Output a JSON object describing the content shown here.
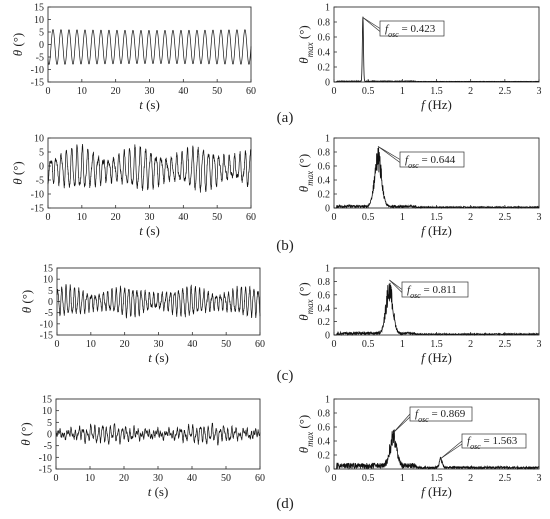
{
  "figure": {
    "panels": [
      {
        "label": "(a)",
        "fosc": [
          "0.423"
        ]
      },
      {
        "label": "(b)",
        "fosc": [
          "0.644"
        ]
      },
      {
        "label": "(c)",
        "fosc": [
          "0.811"
        ]
      },
      {
        "label": "(d)",
        "fosc": [
          "0.869",
          "1.563"
        ]
      }
    ]
  },
  "chart_data": [
    {
      "type": "line",
      "panel": "(a)",
      "role": "time-history",
      "xlabel": "t (s)",
      "ylabel": "θ (°)",
      "xlim": [
        0,
        60
      ],
      "ylim": [
        -15,
        15
      ],
      "xticks": [
        "0",
        "10",
        "20",
        "30",
        "40",
        "50",
        "60"
      ],
      "yticks": [
        "15",
        "10",
        "5",
        "0",
        "-5",
        "-10",
        "-15"
      ],
      "signal": {
        "dominant_frequency_hz": 0.423,
        "amplitude_deg": 7,
        "offset_deg": -1
      }
    },
    {
      "type": "line",
      "panel": "(a)",
      "role": "spectrum",
      "xlabel": "f (Hz)",
      "ylabel": "θmax (°)",
      "xlim": [
        0,
        3
      ],
      "ylim": [
        0,
        1
      ],
      "xticks": [
        "0",
        "0.5",
        "1",
        "1.5",
        "2",
        "2.5",
        "3"
      ],
      "yticks": [
        "1",
        "0.8",
        "0.6",
        "0.4",
        "0.2",
        "0"
      ],
      "peaks": [
        {
          "f": 0.423,
          "amp": 0.86,
          "label": "0.423"
        }
      ]
    },
    {
      "type": "line",
      "panel": "(b)",
      "role": "time-history",
      "xlabel": "t (s)",
      "ylabel": "θ (°)",
      "xlim": [
        0,
        60
      ],
      "ylim": [
        -15,
        10
      ],
      "xticks": [
        "0",
        "10",
        "20",
        "30",
        "40",
        "50",
        "60"
      ],
      "yticks": [
        "10",
        "5",
        "0",
        "-5",
        "-10",
        "-15"
      ],
      "signal": {
        "dominant_frequency_hz": 0.644,
        "amplitude_deg": 7,
        "offset_deg": -1
      }
    },
    {
      "type": "line",
      "panel": "(b)",
      "role": "spectrum",
      "xlabel": "f (Hz)",
      "ylabel": "θmax (°)",
      "xlim": [
        0,
        3
      ],
      "ylim": [
        0,
        1
      ],
      "xticks": [
        "0",
        "0.5",
        "1",
        "1.5",
        "2",
        "2.5",
        "3"
      ],
      "yticks": [
        "1",
        "0.8",
        "0.6",
        "0.4",
        "0.2",
        "0"
      ],
      "peaks": [
        {
          "f": 0.644,
          "amp": 0.88,
          "label": "0.644"
        }
      ]
    },
    {
      "type": "line",
      "panel": "(c)",
      "role": "time-history",
      "xlabel": "t (s)",
      "ylabel": "θ (°)",
      "xlim": [
        0,
        60
      ],
      "ylim": [
        -15,
        15
      ],
      "xticks": [
        "0",
        "10",
        "20",
        "30",
        "40",
        "50",
        "60"
      ],
      "yticks": [
        "15",
        "10",
        "5",
        "0",
        "-5",
        "-10",
        "-15"
      ],
      "signal": {
        "dominant_frequency_hz": 0.811,
        "amplitude_deg": 6,
        "offset_deg": 0
      }
    },
    {
      "type": "line",
      "panel": "(c)",
      "role": "spectrum",
      "xlabel": "f (Hz)",
      "ylabel": "θmax (°)",
      "xlim": [
        0,
        3
      ],
      "ylim": [
        0,
        1
      ],
      "xticks": [
        "0",
        "0.5",
        "1",
        "1.5",
        "2",
        "2.5",
        "3"
      ],
      "yticks": [
        "1",
        "0.8",
        "0.6",
        "0.4",
        "0.2",
        "0"
      ],
      "peaks": [
        {
          "f": 0.811,
          "amp": 0.82,
          "label": "0.811"
        }
      ]
    },
    {
      "type": "line",
      "panel": "(d)",
      "role": "time-history",
      "xlabel": "t (s)",
      "ylabel": "θ (°)",
      "xlim": [
        0,
        60
      ],
      "ylim": [
        -15,
        15
      ],
      "xticks": [
        "0",
        "10",
        "20",
        "30",
        "40",
        "50",
        "60"
      ],
      "yticks": [
        "15",
        "10",
        "5",
        "0",
        "-5",
        "-10",
        "-15"
      ],
      "signal": {
        "dominant_frequency_hz": 0.869,
        "amplitude_deg": 3,
        "offset_deg": 0
      }
    },
    {
      "type": "line",
      "panel": "(d)",
      "role": "spectrum",
      "xlabel": "f (Hz)",
      "ylabel": "θmax (°)",
      "xlim": [
        0,
        3
      ],
      "ylim": [
        0,
        1
      ],
      "xticks": [
        "0",
        "0.5",
        "1",
        "1.5",
        "2",
        "2.5",
        "3"
      ],
      "yticks": [
        "1",
        "0.8",
        "0.6",
        "0.4",
        "0.2",
        "0"
      ],
      "peaks": [
        {
          "f": 0.869,
          "amp": 0.52,
          "label": "0.869"
        },
        {
          "f": 1.563,
          "amp": 0.15,
          "label": "1.563"
        }
      ]
    }
  ]
}
